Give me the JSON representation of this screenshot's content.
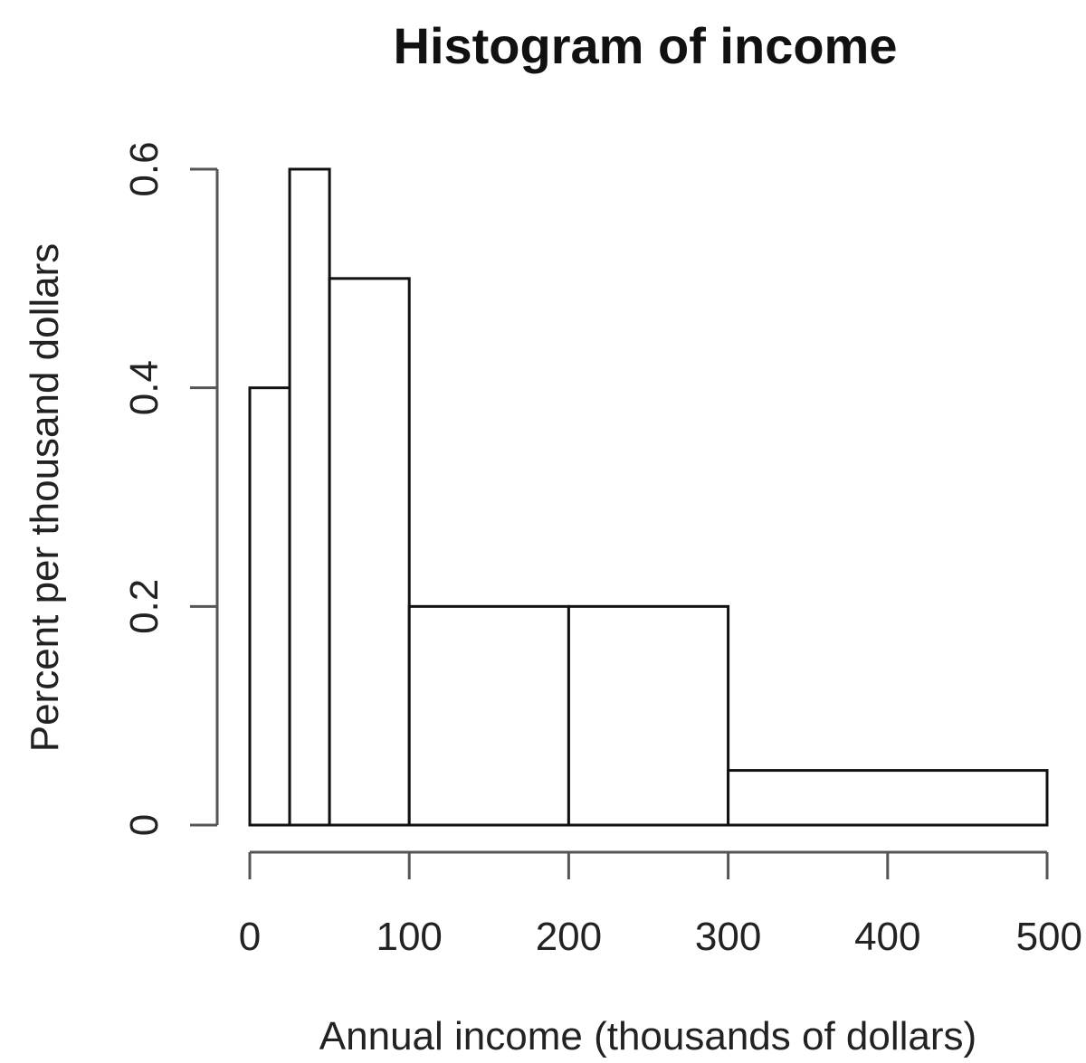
{
  "chart_data": {
    "type": "bar",
    "subtype": "histogram",
    "title": "Histogram of income",
    "xlabel": "Annual income (thousands of dollars)",
    "ylabel": "Percent per thousand dollars",
    "bins": [
      {
        "from": 0,
        "to": 25,
        "value": 0.4
      },
      {
        "from": 25,
        "to": 50,
        "value": 0.6
      },
      {
        "from": 50,
        "to": 100,
        "value": 0.5
      },
      {
        "from": 100,
        "to": 200,
        "value": 0.2
      },
      {
        "from": 200,
        "to": 300,
        "value": 0.2
      },
      {
        "from": 300,
        "to": 500,
        "value": 0.05
      }
    ],
    "xlim": [
      0,
      500
    ],
    "ylim": [
      0,
      0.6
    ],
    "xticks": [
      0,
      100,
      200,
      300,
      400,
      500
    ],
    "xtick_labels": [
      "0",
      "100",
      "200",
      "300",
      "400",
      "500"
    ],
    "yticks": [
      0,
      0.2,
      0.4,
      0.6
    ],
    "ytick_labels": [
      "0",
      "0.2",
      "0.4",
      "0.6"
    ],
    "grid": false,
    "legend": "none",
    "colors": {
      "bar_fill": "#ffffff",
      "bar_stroke": "#111111",
      "axis": "#555555",
      "text": "#222222"
    }
  }
}
